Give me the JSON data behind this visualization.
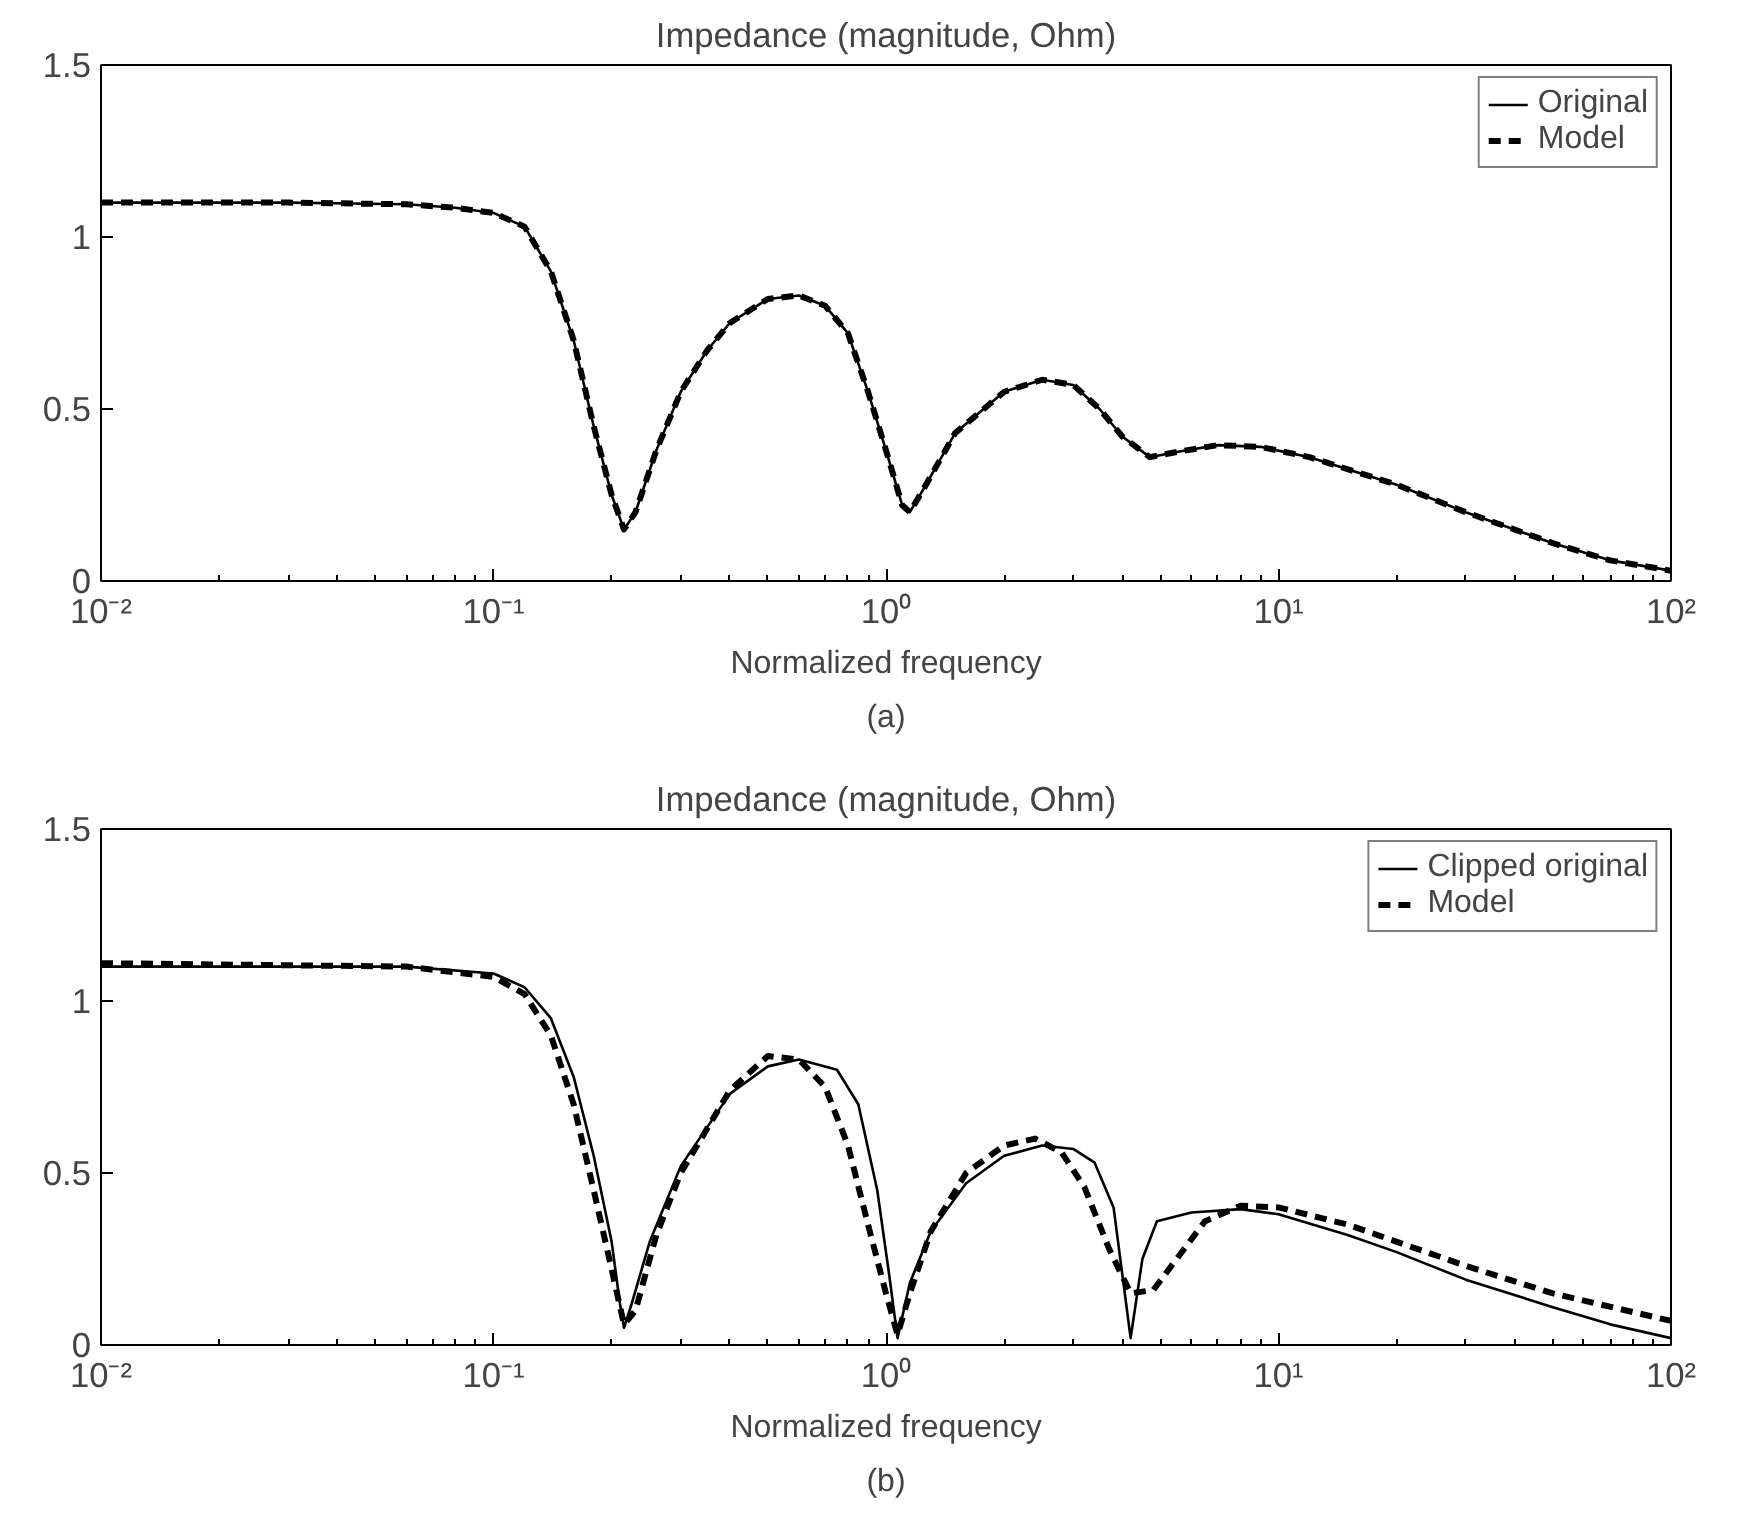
{
  "chart_data": [
    {
      "type": "line",
      "title": "Impedance (magnitude, Ohm)",
      "xlabel": "Normalized frequency",
      "annotations": [
        "(a)"
      ],
      "log": "x",
      "xlim": [
        0.01,
        100
      ],
      "ylim": [
        0,
        1.5
      ],
      "xticks": [
        {
          "value": 0.01,
          "label": "10⁻²"
        },
        {
          "value": 0.1,
          "label": "10⁻¹"
        },
        {
          "value": 1,
          "label": "10⁰"
        },
        {
          "value": 10,
          "label": "10¹"
        },
        {
          "value": 100,
          "label": "10²"
        }
      ],
      "yticks": [
        0,
        0.5,
        1,
        1.5
      ],
      "legend": "top right",
      "grid": false,
      "series": [
        {
          "name": "Original",
          "color": "#000000",
          "line_style": "solid",
          "x": [
            0.01,
            0.03,
            0.06,
            0.08,
            0.1,
            0.12,
            0.14,
            0.16,
            0.18,
            0.2,
            0.215,
            0.23,
            0.26,
            0.3,
            0.35,
            0.4,
            0.5,
            0.6,
            0.7,
            0.8,
            0.9,
            1.0,
            1.1,
            1.15,
            1.25,
            1.5,
            2,
            2.5,
            3,
            3.5,
            4,
            4.7,
            5.5,
            7,
            9,
            12,
            20,
            30,
            50,
            70,
            100
          ],
          "values": [
            1.1,
            1.1,
            1.095,
            1.085,
            1.07,
            1.03,
            0.9,
            0.7,
            0.45,
            0.25,
            0.15,
            0.2,
            0.38,
            0.55,
            0.67,
            0.75,
            0.82,
            0.83,
            0.8,
            0.72,
            0.55,
            0.38,
            0.22,
            0.2,
            0.27,
            0.43,
            0.55,
            0.585,
            0.57,
            0.5,
            0.42,
            0.36,
            0.375,
            0.395,
            0.39,
            0.36,
            0.28,
            0.2,
            0.11,
            0.06,
            0.03
          ]
        },
        {
          "name": "Model",
          "color": "#000000",
          "line_style": "dashed",
          "x": [
            0.01,
            0.03,
            0.06,
            0.08,
            0.1,
            0.12,
            0.14,
            0.16,
            0.18,
            0.2,
            0.215,
            0.23,
            0.26,
            0.3,
            0.35,
            0.4,
            0.5,
            0.6,
            0.7,
            0.8,
            0.9,
            1.0,
            1.1,
            1.15,
            1.25,
            1.5,
            2,
            2.5,
            3,
            3.5,
            4,
            4.7,
            5.5,
            7,
            9,
            12,
            20,
            30,
            50,
            70,
            100
          ],
          "values": [
            1.1,
            1.1,
            1.095,
            1.085,
            1.07,
            1.03,
            0.9,
            0.7,
            0.45,
            0.25,
            0.15,
            0.2,
            0.38,
            0.55,
            0.67,
            0.75,
            0.82,
            0.83,
            0.8,
            0.72,
            0.55,
            0.38,
            0.22,
            0.2,
            0.27,
            0.43,
            0.55,
            0.585,
            0.57,
            0.5,
            0.42,
            0.36,
            0.375,
            0.395,
            0.39,
            0.36,
            0.28,
            0.2,
            0.11,
            0.06,
            0.03
          ]
        }
      ]
    },
    {
      "type": "line",
      "title": "Impedance (magnitude, Ohm)",
      "xlabel": "Normalized frequency",
      "annotations": [
        "(b)"
      ],
      "log": "x",
      "xlim": [
        0.01,
        100
      ],
      "ylim": [
        0,
        1.5
      ],
      "xticks": [
        {
          "value": 0.01,
          "label": "10⁻²"
        },
        {
          "value": 0.1,
          "label": "10⁻¹"
        },
        {
          "value": 1,
          "label": "10⁰"
        },
        {
          "value": 10,
          "label": "10¹"
        },
        {
          "value": 100,
          "label": "10²"
        }
      ],
      "yticks": [
        0,
        0.5,
        1,
        1.5
      ],
      "legend": "top right",
      "grid": false,
      "series": [
        {
          "name": "Clipped original",
          "color": "#000000",
          "line_style": "solid",
          "x": [
            0.01,
            0.06,
            0.1,
            0.12,
            0.14,
            0.16,
            0.18,
            0.2,
            0.21,
            0.215,
            0.225,
            0.25,
            0.3,
            0.4,
            0.5,
            0.6,
            0.75,
            0.85,
            0.95,
            1.02,
            1.07,
            1.15,
            1.3,
            1.6,
            2,
            2.5,
            3,
            3.4,
            3.8,
            4.2,
            4.5,
            4.9,
            6,
            8,
            10,
            15,
            20,
            30,
            50,
            70,
            100
          ],
          "values": [
            1.1,
            1.1,
            1.08,
            1.04,
            0.95,
            0.78,
            0.55,
            0.3,
            0.12,
            0.05,
            0.12,
            0.3,
            0.52,
            0.73,
            0.81,
            0.83,
            0.8,
            0.7,
            0.45,
            0.2,
            0.02,
            0.18,
            0.33,
            0.47,
            0.55,
            0.58,
            0.57,
            0.53,
            0.4,
            0.02,
            0.25,
            0.36,
            0.385,
            0.395,
            0.38,
            0.32,
            0.27,
            0.19,
            0.11,
            0.06,
            0.02
          ]
        },
        {
          "name": "Model",
          "color": "#000000",
          "line_style": "dashed",
          "x": [
            0.01,
            0.06,
            0.1,
            0.12,
            0.14,
            0.16,
            0.18,
            0.2,
            0.215,
            0.23,
            0.26,
            0.3,
            0.4,
            0.5,
            0.6,
            0.7,
            0.8,
            0.9,
            1.0,
            1.07,
            1.15,
            1.3,
            1.6,
            2,
            2.4,
            2.8,
            3.2,
            3.7,
            4.2,
            4.8,
            5.5,
            6.5,
            8,
            10,
            15,
            30,
            50,
            100
          ],
          "values": [
            1.11,
            1.1,
            1.07,
            1.02,
            0.9,
            0.7,
            0.45,
            0.22,
            0.06,
            0.1,
            0.32,
            0.5,
            0.74,
            0.84,
            0.83,
            0.75,
            0.58,
            0.35,
            0.15,
            0.03,
            0.15,
            0.33,
            0.5,
            0.58,
            0.6,
            0.56,
            0.46,
            0.28,
            0.15,
            0.16,
            0.25,
            0.36,
            0.405,
            0.4,
            0.35,
            0.23,
            0.15,
            0.07
          ]
        }
      ]
    }
  ]
}
